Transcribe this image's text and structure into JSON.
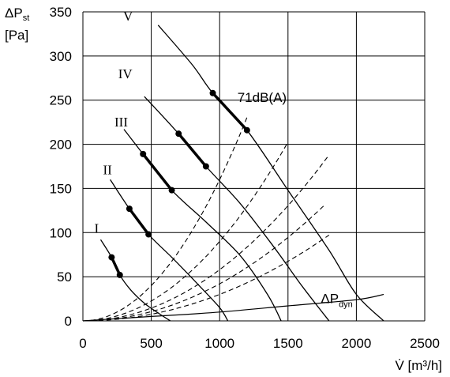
{
  "chart_data": {
    "type": "line",
    "xlabel": "V̇ [m³/h]",
    "ylabel_line1": "ΔPst",
    "ylabel_line2": "[Pa]",
    "xlim": [
      0,
      2500
    ],
    "ylim": [
      0,
      350
    ],
    "xticks": [
      0,
      500,
      1000,
      1500,
      2000,
      2500
    ],
    "yticks": [
      0,
      50,
      100,
      150,
      200,
      250,
      300,
      350
    ],
    "grid": true,
    "fan_curves": [
      {
        "name": "I",
        "points": [
          [
            130,
            92
          ],
          [
            210,
            72
          ],
          [
            270,
            52
          ],
          [
            350,
            35
          ],
          [
            450,
            20
          ],
          [
            560,
            8
          ],
          [
            640,
            0
          ]
        ]
      },
      {
        "name": "II",
        "points": [
          [
            200,
            160
          ],
          [
            340,
            127
          ],
          [
            480,
            98
          ],
          [
            650,
            72
          ],
          [
            850,
            40
          ],
          [
            1000,
            15
          ],
          [
            1060,
            0
          ]
        ]
      },
      {
        "name": "III",
        "points": [
          [
            300,
            217
          ],
          [
            440,
            189
          ],
          [
            650,
            148
          ],
          [
            900,
            112
          ],
          [
            1150,
            74
          ],
          [
            1350,
            30
          ],
          [
            1450,
            0
          ]
        ]
      },
      {
        "name": "IV",
        "points": [
          [
            450,
            254
          ],
          [
            700,
            212
          ],
          [
            900,
            175
          ],
          [
            1150,
            133
          ],
          [
            1400,
            83
          ],
          [
            1600,
            40
          ],
          [
            1800,
            0
          ]
        ]
      },
      {
        "name": "V",
        "points": [
          [
            550,
            335
          ],
          [
            800,
            290
          ],
          [
            950,
            258
          ],
          [
            1200,
            216
          ],
          [
            1500,
            148
          ],
          [
            1800,
            80
          ],
          [
            2000,
            30
          ],
          [
            2200,
            0
          ]
        ]
      }
    ],
    "bold_segments": [
      {
        "curve": "I",
        "from": [
          210,
          72
        ],
        "to": [
          270,
          52
        ]
      },
      {
        "curve": "II",
        "from": [
          340,
          127
        ],
        "to": [
          480,
          98
        ]
      },
      {
        "curve": "III",
        "from": [
          440,
          189
        ],
        "to": [
          650,
          148
        ]
      },
      {
        "curve": "IV",
        "from": [
          700,
          212
        ],
        "to": [
          900,
          175
        ]
      },
      {
        "curve": "V",
        "from": [
          950,
          258
        ],
        "to": [
          1200,
          216
        ]
      }
    ],
    "system_curves": [
      {
        "k": 0.00016
      },
      {
        "k": 9e-05
      },
      {
        "k": 5.8e-05
      },
      {
        "k": 4.2e-05
      },
      {
        "k": 3e-05
      }
    ],
    "system_curve_xmax": [
      1200,
      1500,
      1800,
      1760,
      1800
    ],
    "dynamic_pressure_curve": {
      "label": "ΔP",
      "subscript": "dyn",
      "points": [
        [
          0,
          0
        ],
        [
          500,
          5
        ],
        [
          1000,
          10
        ],
        [
          1500,
          17
        ],
        [
          2000,
          24
        ],
        [
          2200,
          30
        ]
      ]
    },
    "annotations": [
      {
        "text": "71dB(A)",
        "x": 1130,
        "y": 248
      }
    ],
    "label_positions": {
      "I": [
        100,
        100
      ],
      "II": [
        180,
        166
      ],
      "III": [
        280,
        220
      ],
      "IV": [
        310,
        275
      ],
      "V": [
        330,
        340
      ]
    }
  }
}
